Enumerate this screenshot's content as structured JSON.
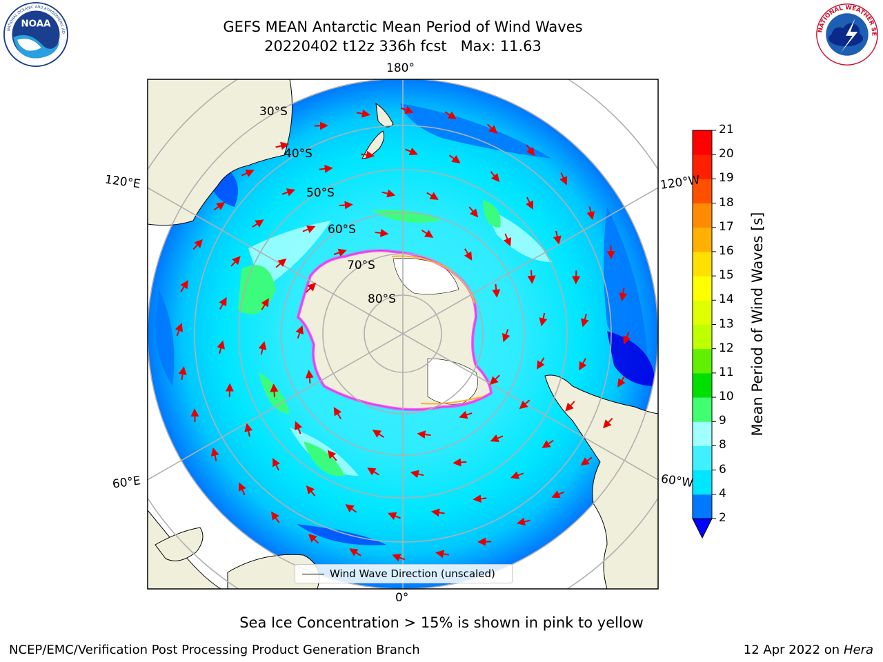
{
  "title": {
    "line1": "GEFS MEAN Antarctic Mean Period of Wind Waves",
    "line2": "20220402 t12z 336h fcst   Max: 11.63"
  },
  "map": {
    "projection": "south-polar-stereographic",
    "longitude_labels": [
      {
        "text": "180°",
        "position": "top"
      },
      {
        "text": "0°",
        "position": "bottom"
      },
      {
        "text": "120°E",
        "position": "upper-left"
      },
      {
        "text": "60°E",
        "position": "lower-left"
      },
      {
        "text": "120°W",
        "position": "upper-right"
      },
      {
        "text": "60°W",
        "position": "lower-right"
      }
    ],
    "latitude_labels": [
      "30°S",
      "40°S",
      "50°S",
      "60°S",
      "70°S",
      "80°S"
    ],
    "legend_entry": "Wind Wave Direction (unscaled)",
    "colors": {
      "land": "#efefdb",
      "ice_shelf": "#ffffff",
      "sea_ice_edge": [
        "#ff40ff",
        "#ffb030",
        "#ffff40"
      ],
      "arrow": "#e60000",
      "grid": "#b0b0b0"
    }
  },
  "colorbar": {
    "label": "Mean Period of Wind Waves [s]",
    "ticks": [
      "2",
      "4",
      "6",
      "8",
      "9",
      "10",
      "11",
      "12",
      "13",
      "14",
      "15",
      "16",
      "17",
      "18",
      "19",
      "20",
      "21"
    ],
    "colors": [
      "#0078ff",
      "#00e6ff",
      "#40f0ff",
      "#a0ffff",
      "#40ff70",
      "#00e000",
      "#60f000",
      "#c0ff00",
      "#e0ff00",
      "#ffff00",
      "#ffe000",
      "#ffb000",
      "#ff8c00",
      "#ff5000",
      "#ff2000",
      "#ff0000"
    ],
    "under_color": "#0000ff"
  },
  "sea_ice_note": "Sea Ice Concentration > 15% is shown in pink to yellow",
  "footer": {
    "left": "NCEP/EMC/Verification Post Processing Product Generation Branch",
    "right_prefix": "12 Apr 2022 on ",
    "right_italic": "Hera"
  },
  "logos": {
    "noaa": "NOAA",
    "nws": "NATIONAL WEATHER SERVICE"
  }
}
